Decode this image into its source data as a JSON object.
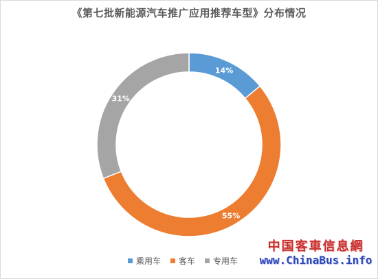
{
  "chart_data": {
    "type": "pie",
    "title": "《第七批新能源汽车推广应用推荐车型》分布情况",
    "donut": true,
    "categories": [
      "乘用车",
      "客车",
      "专用车"
    ],
    "values": [
      14,
      55,
      31
    ],
    "labels": [
      "14%",
      "55%",
      "31%"
    ],
    "colors": [
      "#5b9bd5",
      "#ed7d31",
      "#a5a5a5"
    ],
    "legend_position": "bottom"
  },
  "watermark": {
    "cn": "中国客車信息網",
    "en": "www.ChinaBus.info"
  }
}
